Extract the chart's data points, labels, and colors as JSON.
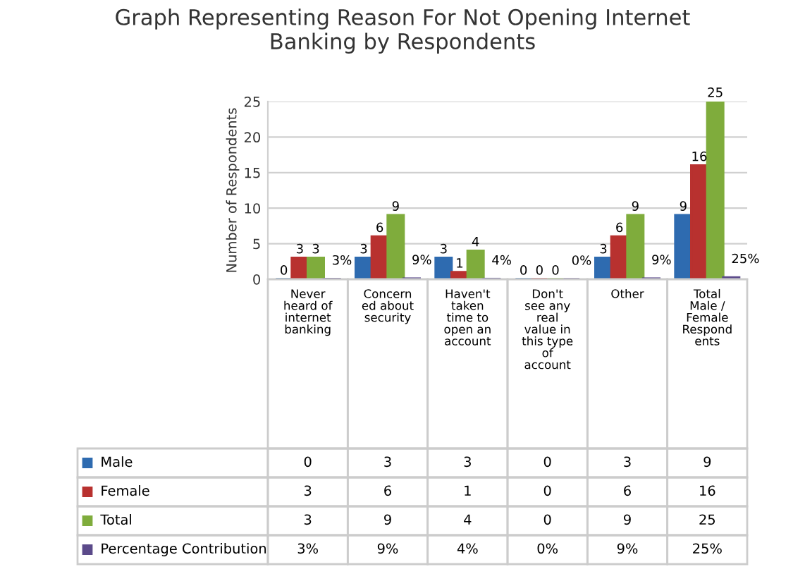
{
  "chart_data": {
    "type": "bar",
    "title": "Graph Representing Reason For Not Opening Internet\nBanking by Respondents",
    "ylabel": "Number of Respondents",
    "categories": [
      "Never\nheard of\ninternet\nbanking",
      "Concern\ned about\nsecurity",
      "Haven't\ntaken\ntime to\nopen an\naccount",
      "Don't\nsee any\nreal\nvalue in\nthis type\nof\naccount",
      "Other",
      "Total\nMale /\nFemale\nRespond\nents"
    ],
    "series": [
      {
        "name": "Male",
        "color": "#2e6bb0",
        "values": [
          0,
          3,
          3,
          0,
          3,
          9
        ],
        "value_labels": [
          "0",
          "3",
          "3",
          "0",
          "3",
          "9"
        ]
      },
      {
        "name": "Female",
        "color": "#b8312f",
        "values": [
          3,
          6,
          1,
          0,
          6,
          16
        ],
        "value_labels": [
          "3",
          "6",
          "1",
          "0",
          "6",
          "16"
        ]
      },
      {
        "name": "Total",
        "color": "#7fac3c",
        "values": [
          3,
          9,
          4,
          0,
          9,
          25
        ],
        "value_labels": [
          "3",
          "9",
          "4",
          "0",
          "9",
          "25"
        ]
      },
      {
        "name": "Percentage Contribution",
        "color": "#5b4a8a",
        "values": [
          0.03,
          0.09,
          0.04,
          0,
          0.09,
          0.25
        ],
        "value_labels": [
          "3%",
          "9%",
          "4%",
          "0%",
          "9%",
          "25%"
        ]
      }
    ],
    "ylim": [
      0,
      25
    ],
    "yticks": [
      0,
      5,
      10,
      15,
      20,
      25
    ],
    "grid": "y",
    "legend": "bottom"
  }
}
